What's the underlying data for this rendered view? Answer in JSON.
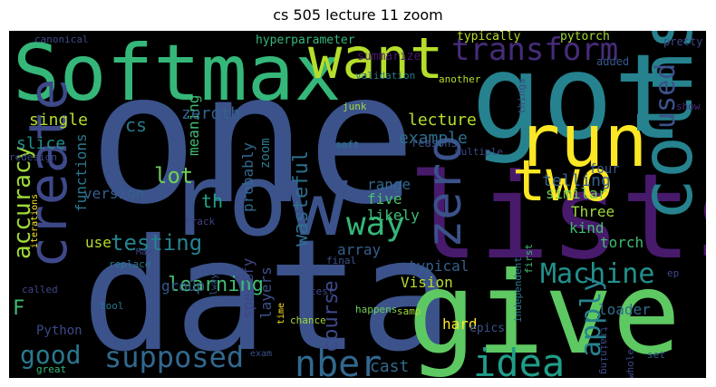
{
  "title": "cs 505 lecture 11 zoom",
  "words": [
    {
      "text": "one",
      "color": "#3b528b"
    },
    {
      "text": "lists",
      "color": "#481a6c"
    },
    {
      "text": "data",
      "color": "#3b528b"
    },
    {
      "text": "got",
      "color": "#26828e"
    },
    {
      "text": "row",
      "color": "#3b528b"
    },
    {
      "text": "give",
      "color": "#5ec962"
    },
    {
      "text": "Softmax",
      "color": "#35b779"
    },
    {
      "text": "want",
      "color": "#b5de2b"
    },
    {
      "text": "run",
      "color": "#fde725"
    },
    {
      "text": "colns",
      "color": "#26828e"
    },
    {
      "text": "create",
      "color": "#3e4989"
    },
    {
      "text": "two",
      "color": "#fde725"
    },
    {
      "text": "zero",
      "color": "#3b528b"
    },
    {
      "text": "transform",
      "color": "#472c7a"
    },
    {
      "text": "idea",
      "color": "#1f9e89"
    },
    {
      "text": "nber",
      "color": "#31688e"
    },
    {
      "text": "way",
      "color": "#35b779"
    },
    {
      "text": "Machine",
      "color": "#21918c"
    },
    {
      "text": "supposed",
      "color": "#31688e"
    },
    {
      "text": "accuracy",
      "color": "#a0da39"
    },
    {
      "text": "apply",
      "color": "#26828e"
    },
    {
      "text": "good",
      "color": "#2a788e"
    },
    {
      "text": "used",
      "color": "#3b528b"
    },
    {
      "text": "testing",
      "color": "#26828e"
    },
    {
      "text": "course",
      "color": "#3e4989"
    },
    {
      "text": "lot",
      "color": "#6ece58"
    },
    {
      "text": "learning",
      "color": "#3fbc73"
    },
    {
      "text": "wasteful",
      "color": "#2e6e8e"
    },
    {
      "text": "lecture",
      "color": "#b5de2b"
    },
    {
      "text": "example",
      "color": "#2e6e8e"
    },
    {
      "text": "single",
      "color": "#b5de2b"
    },
    {
      "text": "slice",
      "color": "#21918c"
    },
    {
      "text": "functions",
      "color": "#2a788e"
    },
    {
      "text": "meaning",
      "color": "#3fbc73"
    },
    {
      "text": "probably",
      "color": "#31688e"
    },
    {
      "text": "zeroth",
      "color": "#35608d"
    },
    {
      "text": "telling",
      "color": "#355f8d"
    },
    {
      "text": "range",
      "color": "#31688e"
    },
    {
      "text": "version",
      "color": "#35608d"
    },
    {
      "text": "similar",
      "color": "#6ece58"
    },
    {
      "text": "Three",
      "color": "#a0da39"
    },
    {
      "text": "five",
      "color": "#4ac16d"
    },
    {
      "text": "likely",
      "color": "#3fbc73"
    },
    {
      "text": "four",
      "color": "#38598c"
    },
    {
      "text": "kind",
      "color": "#3fbc73"
    },
    {
      "text": "torch",
      "color": "#3fbc73"
    },
    {
      "text": "array",
      "color": "#355f8d"
    },
    {
      "text": "use",
      "color": "#b5de2b"
    },
    {
      "text": "F",
      "color": "#3fbc73"
    },
    {
      "text": "group",
      "color": "#38598c"
    },
    {
      "text": "specify",
      "color": "#414487"
    },
    {
      "text": "layers",
      "color": "#3b528b"
    },
    {
      "text": "cast",
      "color": "#306a8e"
    },
    {
      "text": "Vision",
      "color": "#b5de2b"
    },
    {
      "text": "typical",
      "color": "#355f8d"
    },
    {
      "text": "hard",
      "color": "#fde725"
    },
    {
      "text": "loader",
      "color": "#2e6e8e"
    },
    {
      "text": "Python",
      "color": "#3e4989"
    },
    {
      "text": "th",
      "color": "#20a486"
    },
    {
      "text": "cs",
      "color": "#2a788e"
    },
    {
      "text": "zoom",
      "color": "#2a788e"
    },
    {
      "text": "hyperparameter",
      "color": "#35b779"
    },
    {
      "text": "summarize",
      "color": "#481a6c"
    },
    {
      "text": "typically",
      "color": "#b5de2b"
    },
    {
      "text": "pytorch",
      "color": "#a0da39"
    },
    {
      "text": "added",
      "color": "#38598c"
    },
    {
      "text": "pretty",
      "color": "#3e4989"
    },
    {
      "text": "canonical",
      "color": "#3e4989"
    },
    {
      "text": "validation",
      "color": "#2a788e"
    },
    {
      "text": "another",
      "color": "#b5de2b"
    },
    {
      "text": "junk",
      "color": "#a0da39"
    },
    {
      "text": "soft",
      "color": "#2a788e"
    },
    {
      "text": "reasons",
      "color": "#3b528b"
    },
    {
      "text": "multiple",
      "color": "#3e4989"
    },
    {
      "text": "things",
      "color": "#3e4989"
    },
    {
      "text": "show",
      "color": "#472c7a"
    },
    {
      "text": "redesign",
      "color": "#3e4989"
    },
    {
      "text": "iterations",
      "color": "#fde725"
    },
    {
      "text": "Max",
      "color": "#414487"
    },
    {
      "text": "track",
      "color": "#414487"
    },
    {
      "text": "replace",
      "color": "#2a788e"
    },
    {
      "text": "called",
      "color": "#414487"
    },
    {
      "text": "SGD",
      "color": "#3e4989"
    },
    {
      "text": "tool",
      "color": "#2a788e"
    },
    {
      "text": "always",
      "color": "#3b528b"
    },
    {
      "text": "time",
      "color": "#fde725"
    },
    {
      "text": "exam",
      "color": "#3b528b"
    },
    {
      "text": "great",
      "color": "#35b779"
    },
    {
      "text": "chance",
      "color": "#a0da39"
    },
    {
      "text": "final",
      "color": "#3b528b"
    },
    {
      "text": "test",
      "color": "#3e4989"
    },
    {
      "text": "samp",
      "color": "#a0da39"
    },
    {
      "text": "happens",
      "color": "#6ece58"
    },
    {
      "text": "first",
      "color": "#3fbc73"
    },
    {
      "text": "independent",
      "color": "#2a788e"
    },
    {
      "text": "epics",
      "color": "#3b528b"
    },
    {
      "text": "training",
      "color": "#3e4989"
    },
    {
      "text": "whole",
      "color": "#3e4989"
    },
    {
      "text": "set",
      "color": "#35608d"
    },
    {
      "text": "ep",
      "color": "#3e4989"
    }
  ]
}
